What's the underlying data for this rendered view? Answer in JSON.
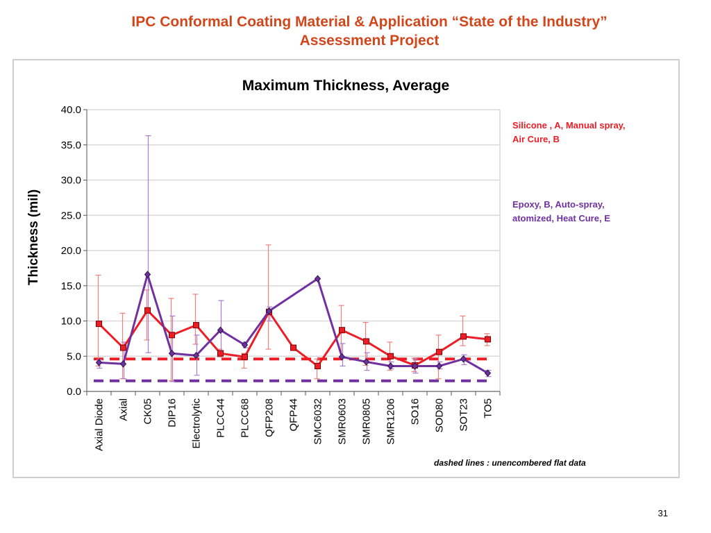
{
  "page": {
    "title_line1": "IPC Conformal Coating Material & Application “State of the Industry”",
    "title_line2": "Assessment Project",
    "page_number": "31"
  },
  "colors": {
    "title": "#d2461b",
    "silicone": "#ee1c24",
    "epoxy": "#7030a0",
    "silicone_error": "#f08078",
    "epoxy_error": "#a87bd0",
    "grid": "#d9d9d9"
  },
  "chart_data": {
    "type": "line",
    "title": "Maximum Thickness, Average",
    "xlabel": "",
    "ylabel": "Thickness (mil)",
    "ylim": [
      0,
      40
    ],
    "yticks": [
      "0.0",
      "5.0",
      "10.0",
      "15.0",
      "20.0",
      "25.0",
      "30.0",
      "35.0",
      "40.0"
    ],
    "grid": "horizontal",
    "categories": [
      "Axial Diode",
      "Axial",
      "CK05",
      "DIP16",
      "Electrolytic",
      "PLCC44",
      "PLCC68",
      "QFP208",
      "QFP44",
      "SMC6032",
      "SMR0603",
      "SMR0805",
      "SMR1206",
      "SO16",
      "SOD80",
      "SOT23",
      "TO5"
    ],
    "series": [
      {
        "name": "Silicone , A, Manual spray, Air Cure, B",
        "color": "#ee1c24",
        "marker": "square",
        "values": [
          9.6,
          6.2,
          11.5,
          8.0,
          9.4,
          5.4,
          4.9,
          11.3,
          6.2,
          3.6,
          8.7,
          7.1,
          5.0,
          3.7,
          5.6,
          7.8,
          7.4
        ],
        "error_low": [
          3.6,
          1.8,
          7.3,
          1.5,
          6.7,
          4.9,
          3.3,
          6.0,
          null,
          1.8,
          5.0,
          3.7,
          3.0,
          2.8,
          1.8,
          6.5,
          6.5
        ],
        "error_high": [
          16.5,
          11.1,
          14.4,
          13.2,
          13.8,
          6.0,
          5.4,
          20.8,
          null,
          4.6,
          12.2,
          9.8,
          7.0,
          4.7,
          8.0,
          10.7,
          8.2
        ],
        "reference": 4.6
      },
      {
        "name": "Epoxy, B, Auto-spray, atomized, Heat Cure, E",
        "color": "#7030a0",
        "marker": "diamond",
        "values": [
          4.1,
          3.9,
          16.6,
          5.4,
          5.1,
          8.7,
          6.6,
          11.4,
          null,
          16.0,
          4.9,
          4.2,
          3.6,
          3.6,
          3.6,
          4.6,
          2.6
        ],
        "error_low": [
          3.3,
          1.8,
          5.5,
          1.4,
          2.3,
          5.8,
          6.2,
          10.0,
          null,
          null,
          3.6,
          3.0,
          3.2,
          2.6,
          3.2,
          3.8,
          2.1
        ],
        "error_high": [
          4.5,
          7.0,
          36.3,
          10.7,
          8.0,
          12.9,
          7.0,
          12.0,
          null,
          null,
          6.8,
          5.5,
          4.2,
          4.6,
          4.2,
          5.2,
          3.0
        ],
        "reference": 1.5
      }
    ],
    "legend": {
      "placement": "right",
      "silicone_line1": "Silicone , A, Manual spray,",
      "silicone_line2": "Air Cure, B",
      "epoxy_line1": "Epoxy, B, Auto-spray,",
      "epoxy_line2": "atomized, Heat Cure, E"
    },
    "annotation": "dashed lines : unencombered flat data"
  }
}
